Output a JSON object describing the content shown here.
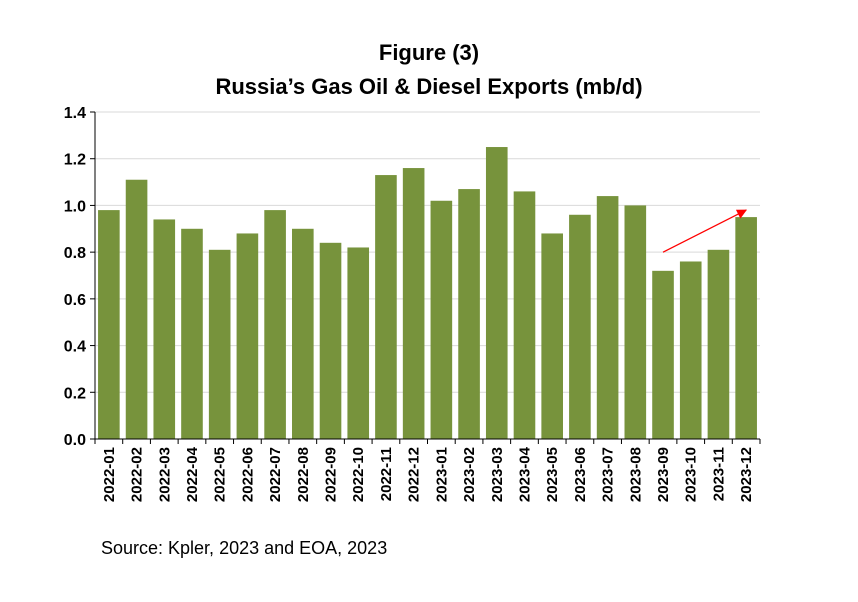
{
  "chart_data": {
    "type": "bar",
    "title_line1": "Figure (3)",
    "title_line2": "Russia’s Gas Oil & Diesel Exports (mb/d)",
    "categories": [
      "2022-01",
      "2022-02",
      "2022-03",
      "2022-04",
      "2022-05",
      "2022-06",
      "2022-07",
      "2022-08",
      "2022-09",
      "2022-10",
      "2022-11",
      "2022-12",
      "2023-01",
      "2023-02",
      "2023-03",
      "2023-04",
      "2023-05",
      "2023-06",
      "2023-07",
      "2023-08",
      "2023-09",
      "2023-10",
      "2023-11",
      "2023-12"
    ],
    "values": [
      0.98,
      1.11,
      0.94,
      0.9,
      0.81,
      0.88,
      0.98,
      0.9,
      0.84,
      0.82,
      1.13,
      1.16,
      1.02,
      1.07,
      1.25,
      1.06,
      0.88,
      0.96,
      1.04,
      1.0,
      0.72,
      0.76,
      0.81,
      0.95
    ],
    "ylim": [
      0,
      1.4
    ],
    "yticks": [
      "0.0",
      "0.2",
      "0.4",
      "0.6",
      "0.8",
      "1.0",
      "1.2",
      "1.4"
    ],
    "grid": true,
    "bar_color": "#77933c",
    "arrow_color": "#ff0000",
    "annotation_arrow": {
      "from_category": "2023-09",
      "from_value": 0.8,
      "to_category": "2023-12",
      "to_value": 0.98
    },
    "source": "Source: Kpler, 2023 and EOA, 2023"
  }
}
